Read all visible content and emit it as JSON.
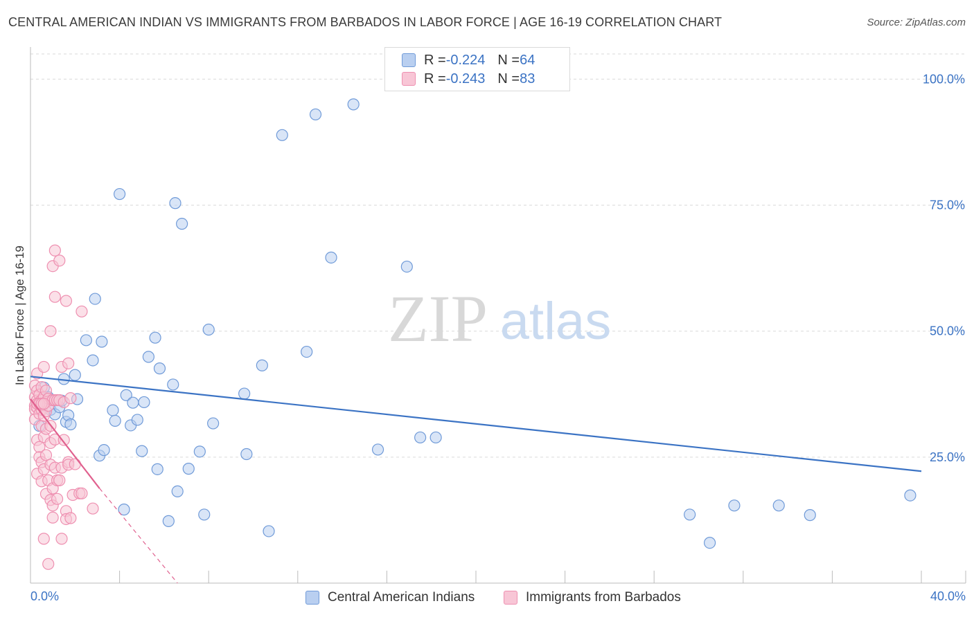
{
  "title": "CENTRAL AMERICAN INDIAN VS IMMIGRANTS FROM BARBADOS IN LABOR FORCE | AGE 16-19 CORRELATION CHART",
  "source": "Source: ZipAtlas.com",
  "watermark": {
    "zip": "ZIP",
    "atlas": "atlas"
  },
  "colors": {
    "blue": "#3b73c4",
    "blue_fill": "#b9cff0",
    "blue_stroke": "#6f9ad8",
    "pink": "#e0608e",
    "pink_fill": "#f8c6d6",
    "pink_stroke": "#ee8fb0",
    "grid": "#d9d9d9",
    "axis": "#999999"
  },
  "legend": {
    "rows": [
      {
        "r_label": "R = ",
        "r_value": "-0.224",
        "n_label": "N = ",
        "n_value": "64"
      },
      {
        "r_label": "R = ",
        "r_value": "-0.243",
        "n_label": "N = ",
        "n_value": "83"
      }
    ]
  },
  "chart_data": {
    "type": "scatter",
    "title": "CENTRAL AMERICAN INDIAN VS IMMIGRANTS FROM BARBADOS IN LABOR FORCE | AGE 16-19 CORRELATION CHART",
    "xlabel": "",
    "ylabel": "In Labor Force | Age 16-19",
    "xlim": [
      0,
      40
    ],
    "ylim": [
      0,
      105
    ],
    "x_tick_labels": {
      "min": "0.0%",
      "max": "40.0%"
    },
    "y_ticks": [
      {
        "value": 25,
        "label": "25.0%"
      },
      {
        "value": 50,
        "label": "50.0%"
      },
      {
        "value": 75,
        "label": "75.0%"
      },
      {
        "value": 100,
        "label": "100.0%"
      }
    ],
    "grid": true,
    "legend_position": "top-center",
    "series": [
      {
        "name": "Central American Indians",
        "color": "blue",
        "r": -0.224,
        "n": 64,
        "trend": {
          "x0": 0,
          "y0": 41.0,
          "x1": 40,
          "y1": 22.2
        },
        "points": [
          [
            0.4,
            31.2
          ],
          [
            0.6,
            38.8
          ],
          [
            0.9,
            34.4
          ],
          [
            1.0,
            36.3
          ],
          [
            1.1,
            33.5
          ],
          [
            1.3,
            34.9
          ],
          [
            1.4,
            36.2
          ],
          [
            1.5,
            40.5
          ],
          [
            1.6,
            32.0
          ],
          [
            1.7,
            33.3
          ],
          [
            1.8,
            31.5
          ],
          [
            2.0,
            41.3
          ],
          [
            2.1,
            36.5
          ],
          [
            2.5,
            48.2
          ],
          [
            2.8,
            44.2
          ],
          [
            2.9,
            56.4
          ],
          [
            3.1,
            25.3
          ],
          [
            3.2,
            47.9
          ],
          [
            3.3,
            26.4
          ],
          [
            3.7,
            34.3
          ],
          [
            3.8,
            32.2
          ],
          [
            4.0,
            77.2
          ],
          [
            4.2,
            14.6
          ],
          [
            4.3,
            37.3
          ],
          [
            4.5,
            31.3
          ],
          [
            4.6,
            35.8
          ],
          [
            4.8,
            32.4
          ],
          [
            5.0,
            26.2
          ],
          [
            5.1,
            35.9
          ],
          [
            5.3,
            44.9
          ],
          [
            5.6,
            48.7
          ],
          [
            5.7,
            22.6
          ],
          [
            5.8,
            42.6
          ],
          [
            6.2,
            12.3
          ],
          [
            6.4,
            39.4
          ],
          [
            6.5,
            75.4
          ],
          [
            6.6,
            18.2
          ],
          [
            6.8,
            71.3
          ],
          [
            7.1,
            22.7
          ],
          [
            7.6,
            26.1
          ],
          [
            7.8,
            13.6
          ],
          [
            8.0,
            50.3
          ],
          [
            8.2,
            31.7
          ],
          [
            9.6,
            37.6
          ],
          [
            9.7,
            25.6
          ],
          [
            10.4,
            43.2
          ],
          [
            10.7,
            10.3
          ],
          [
            11.3,
            88.9
          ],
          [
            12.4,
            45.9
          ],
          [
            12.8,
            93.0
          ],
          [
            13.5,
            64.6
          ],
          [
            14.5,
            95.0
          ],
          [
            15.6,
            26.5
          ],
          [
            16.9,
            62.8
          ],
          [
            17.5,
            28.9
          ],
          [
            18.2,
            28.9
          ],
          [
            29.6,
            13.6
          ],
          [
            30.5,
            8.0
          ],
          [
            31.6,
            15.4
          ],
          [
            33.6,
            15.4
          ],
          [
            35.0,
            13.5
          ],
          [
            39.5,
            17.4
          ],
          [
            0.5,
            35.1
          ],
          [
            0.8,
            36.9
          ]
        ]
      },
      {
        "name": "Immigrants from Barbados",
        "color": "pink",
        "r": -0.243,
        "n": 83,
        "trend": {
          "x0": 0,
          "y0": 36.5,
          "x1": 3.1,
          "y1": 18.8
        },
        "trend_dashed": {
          "x0": 3.1,
          "y0": 18.8,
          "x1": 6.6,
          "y1": 0
        },
        "points": [
          [
            0.2,
            36.9
          ],
          [
            0.2,
            35.2
          ],
          [
            0.2,
            39.2
          ],
          [
            0.2,
            34.5
          ],
          [
            0.2,
            32.5
          ],
          [
            0.3,
            36.3
          ],
          [
            0.3,
            34.8
          ],
          [
            0.3,
            41.6
          ],
          [
            0.3,
            38.2
          ],
          [
            0.3,
            28.4
          ],
          [
            0.3,
            21.7
          ],
          [
            0.4,
            35.9
          ],
          [
            0.4,
            33.6
          ],
          [
            0.4,
            37.4
          ],
          [
            0.4,
            27.0
          ],
          [
            0.4,
            25.0
          ],
          [
            0.5,
            36.3
          ],
          [
            0.5,
            38.9
          ],
          [
            0.5,
            34.4
          ],
          [
            0.5,
            31.2
          ],
          [
            0.5,
            24.0
          ],
          [
            0.5,
            20.2
          ],
          [
            0.6,
            35.6
          ],
          [
            0.6,
            33.2
          ],
          [
            0.6,
            36.9
          ],
          [
            0.6,
            42.9
          ],
          [
            0.6,
            29.0
          ],
          [
            0.6,
            22.6
          ],
          [
            0.6,
            8.8
          ],
          [
            0.7,
            35.9
          ],
          [
            0.7,
            38.2
          ],
          [
            0.7,
            34.1
          ],
          [
            0.7,
            30.6
          ],
          [
            0.7,
            25.4
          ],
          [
            0.7,
            17.7
          ],
          [
            0.8,
            35.2
          ],
          [
            0.8,
            36.6
          ],
          [
            0.8,
            3.8
          ],
          [
            0.8,
            20.4
          ],
          [
            0.9,
            31.2
          ],
          [
            0.9,
            27.8
          ],
          [
            0.9,
            23.5
          ],
          [
            0.9,
            16.5
          ],
          [
            0.9,
            50.0
          ],
          [
            1.0,
            36.3
          ],
          [
            1.0,
            62.9
          ],
          [
            1.0,
            18.8
          ],
          [
            1.0,
            13.0
          ],
          [
            1.0,
            15.4
          ],
          [
            1.1,
            36.3
          ],
          [
            1.1,
            28.5
          ],
          [
            1.1,
            22.9
          ],
          [
            1.1,
            66.0
          ],
          [
            1.1,
            56.8
          ],
          [
            1.2,
            36.3
          ],
          [
            1.2,
            16.7
          ],
          [
            1.2,
            20.4
          ],
          [
            1.3,
            36.3
          ],
          [
            1.3,
            64.0
          ],
          [
            1.3,
            20.4
          ],
          [
            1.4,
            42.9
          ],
          [
            1.4,
            22.9
          ],
          [
            1.4,
            8.8
          ],
          [
            1.5,
            35.9
          ],
          [
            1.5,
            28.4
          ],
          [
            1.6,
            56.0
          ],
          [
            1.6,
            14.3
          ],
          [
            1.6,
            12.7
          ],
          [
            1.7,
            43.6
          ],
          [
            1.7,
            24.0
          ],
          [
            1.7,
            23.5
          ],
          [
            1.8,
            36.7
          ],
          [
            1.8,
            12.9
          ],
          [
            1.9,
            17.5
          ],
          [
            2.0,
            23.6
          ],
          [
            2.2,
            17.8
          ],
          [
            2.3,
            53.9
          ],
          [
            2.3,
            17.8
          ],
          [
            2.8,
            14.8
          ],
          [
            0.3,
            35.6
          ],
          [
            0.4,
            35.6
          ],
          [
            0.5,
            35.6
          ],
          [
            0.6,
            35.6
          ]
        ]
      }
    ]
  }
}
